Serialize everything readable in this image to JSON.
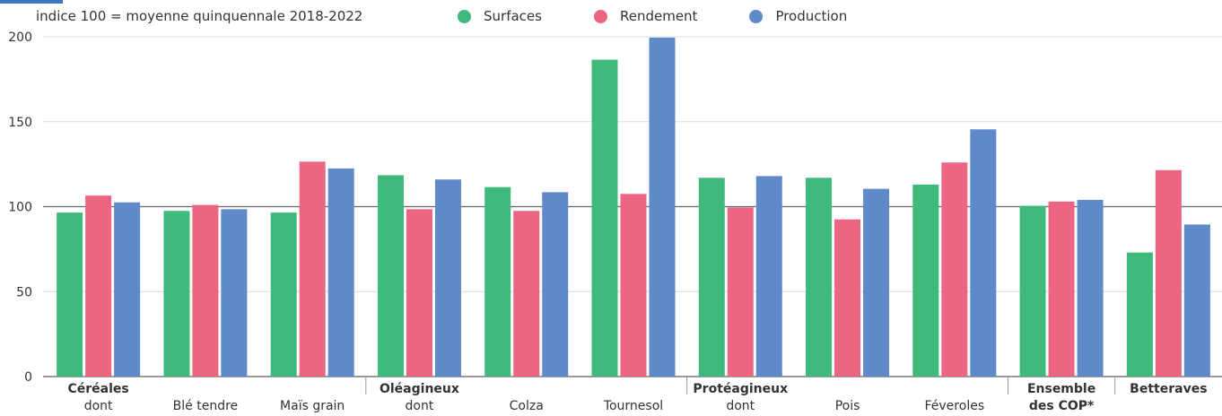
{
  "chart_data": {
    "type": "bar",
    "title": "",
    "subtitle": "indice 100 = moyenne quinquennale 2018-2022",
    "xlabel": "",
    "ylabel": "",
    "ylim": [
      0,
      200
    ],
    "yticks": [
      "0",
      "50",
      "100",
      "150",
      "200"
    ],
    "grid": true,
    "reference_line": 100,
    "legend_position": "top",
    "categories": [
      {
        "line1": "Céréales",
        "line2": "dont",
        "bold": true
      },
      {
        "line1": "",
        "line2": "Blé tendre",
        "bold": false
      },
      {
        "line1": "",
        "line2": "Maïs grain",
        "bold": false
      },
      {
        "line1": "Oléagineux",
        "line2": "dont",
        "bold": true
      },
      {
        "line1": "",
        "line2": "Colza",
        "bold": false
      },
      {
        "line1": "",
        "line2": "Tournesol",
        "bold": false
      },
      {
        "line1": "Protéagineux",
        "line2": "dont",
        "bold": true
      },
      {
        "line1": "",
        "line2": "Pois",
        "bold": false
      },
      {
        "line1": "",
        "line2": "Féveroles",
        "bold": false
      },
      {
        "line1": "Ensemble",
        "line2": "des COP*",
        "bold": true
      },
      {
        "line1": "Betteraves",
        "line2": "",
        "bold": true
      }
    ],
    "series": [
      {
        "name": "Surfaces",
        "color": "#3fba7c",
        "values": [
          96.5,
          97.5,
          96.5,
          118.5,
          111.5,
          186.5,
          117,
          117,
          113,
          100.5,
          73
        ]
      },
      {
        "name": "Rendement",
        "color": "#ec6582",
        "values": [
          106.5,
          101,
          126.5,
          98.5,
          97.5,
          107.5,
          99.5,
          92.5,
          126,
          103,
          121.5
        ]
      },
      {
        "name": "Production",
        "color": "#5f89c8",
        "values": [
          102.5,
          98.5,
          122.5,
          116,
          108.5,
          199.5,
          118,
          110.5,
          145.5,
          104,
          89.5
        ]
      }
    ]
  }
}
